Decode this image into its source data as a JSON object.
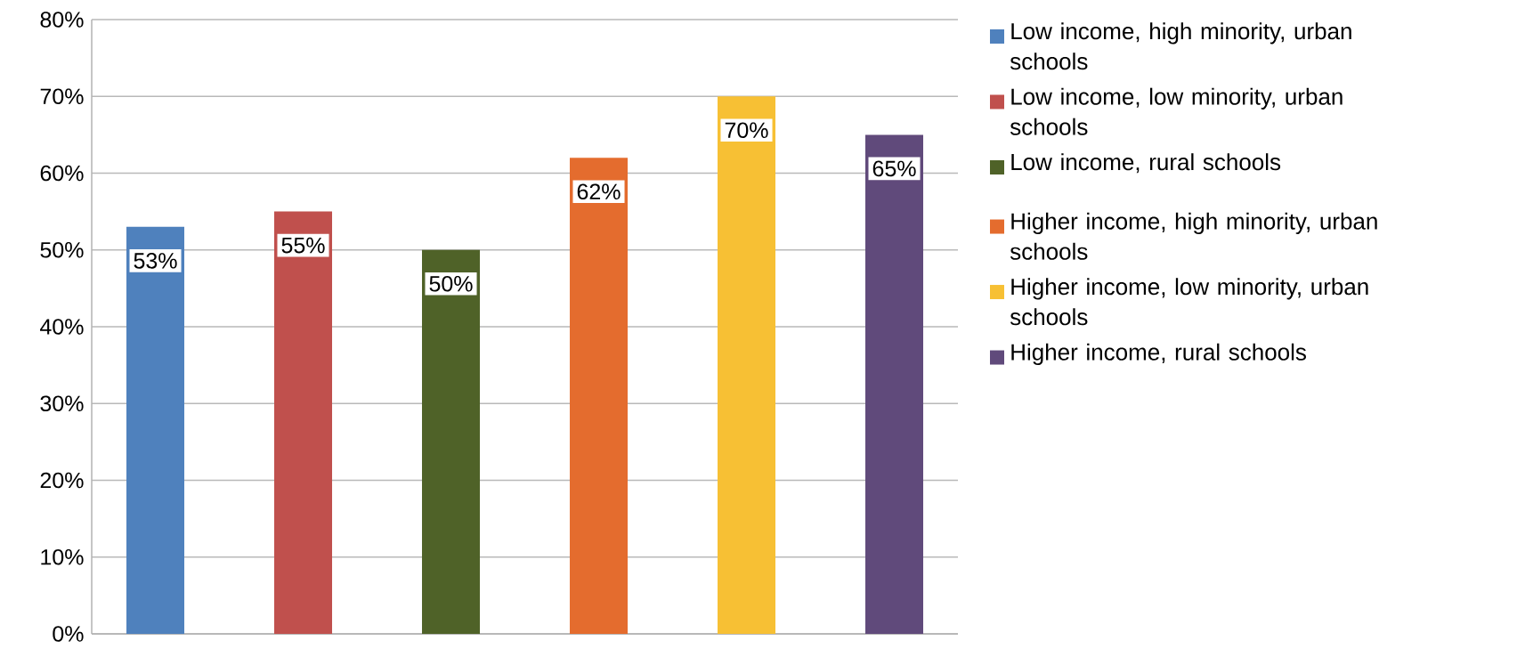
{
  "chart_data": {
    "type": "bar",
    "categories": [
      null
    ],
    "series": [
      {
        "name": "Low income, high minority, urban schools",
        "color": "#4f81bd",
        "values": [
          53
        ],
        "value_labels": [
          "53%"
        ]
      },
      {
        "name": "Low income, low minority, urban schools",
        "color": "#c0504d",
        "values": [
          55
        ],
        "value_labels": [
          "55%"
        ]
      },
      {
        "name": "Low income, rural schools",
        "color": "#4f6228",
        "values": [
          50
        ],
        "value_labels": [
          "50%"
        ]
      },
      {
        "name": "Higher income, high minority, urban schools",
        "color": "#e46c2e",
        "values": [
          62
        ],
        "value_labels": [
          "62%"
        ]
      },
      {
        "name": "Higher income, low minority, urban schools",
        "color": "#f7c034",
        "values": [
          70
        ],
        "value_labels": [
          "70%"
        ]
      },
      {
        "name": "Higher income, rural schools",
        "color": "#604a7b",
        "values": [
          65
        ],
        "value_labels": [
          "65%"
        ]
      }
    ],
    "ylim": [
      0,
      80
    ],
    "yticks": [
      {
        "value": 0,
        "label": "0%"
      },
      {
        "value": 10,
        "label": "10%"
      },
      {
        "value": 20,
        "label": "20%"
      },
      {
        "value": 30,
        "label": "30%"
      },
      {
        "value": 40,
        "label": "40%"
      },
      {
        "value": 50,
        "label": "50%"
      },
      {
        "value": 60,
        "label": "60%"
      },
      {
        "value": 70,
        "label": "70%"
      },
      {
        "value": 80,
        "label": "80%"
      }
    ],
    "grid": "y",
    "legend": "right"
  }
}
